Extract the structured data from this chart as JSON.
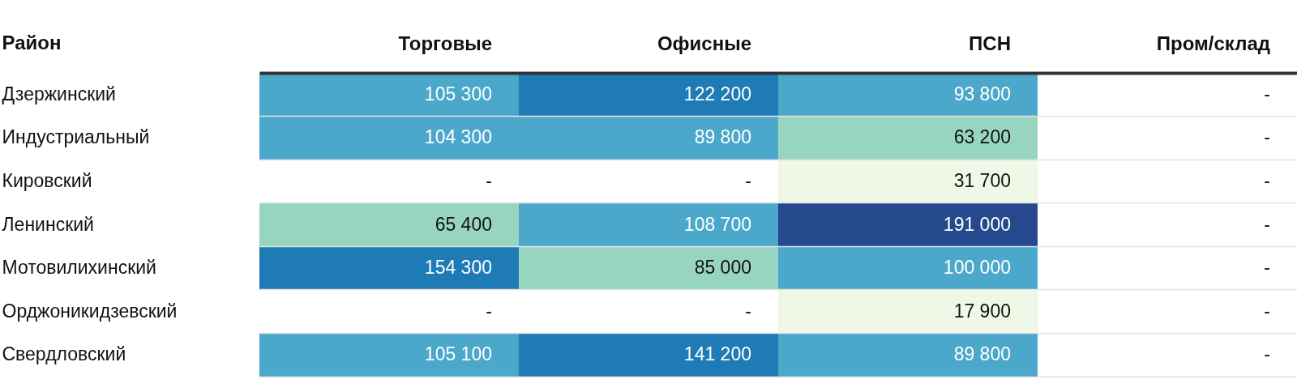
{
  "chart_data": {
    "type": "heatmap",
    "ylabel": "Район",
    "grid": "y",
    "categories": [
      "Торговые",
      "Офисные",
      "ПСН",
      "Пром/склад"
    ],
    "y_categories": [
      "Дзержинский",
      "Индустриальный",
      "Кировский",
      "Ленинский",
      "Мотовилихинский",
      "Орджоникидзевский",
      "Свердловский"
    ],
    "cells": [
      [
        105300,
        122200,
        93800,
        null
      ],
      [
        104300,
        89800,
        63200,
        null
      ],
      [
        null,
        null,
        31700,
        null
      ],
      [
        65400,
        108700,
        191000,
        null
      ],
      [
        154300,
        85000,
        100000,
        null
      ],
      [
        null,
        null,
        17900,
        null
      ],
      [
        105100,
        141200,
        89800,
        null
      ]
    ],
    "cell_labels": [
      [
        "105 300",
        "122 200",
        "93 800",
        "-"
      ],
      [
        "104 300",
        "89 800",
        "63 200",
        "-"
      ],
      [
        "-",
        "-",
        "31 700",
        "-"
      ],
      [
        "65 400",
        "108 700",
        "191 000",
        "-"
      ],
      [
        "154 300",
        "85 000",
        "100 000",
        "-"
      ],
      [
        "-",
        "-",
        "17 900",
        "-"
      ],
      [
        "105 100",
        "141 200",
        "89 800",
        "-"
      ]
    ],
    "colors": [
      "#eff8e6",
      "#98d5c1",
      "#4ba8ca",
      "#1f7bb6",
      "#25498c"
    ]
  }
}
